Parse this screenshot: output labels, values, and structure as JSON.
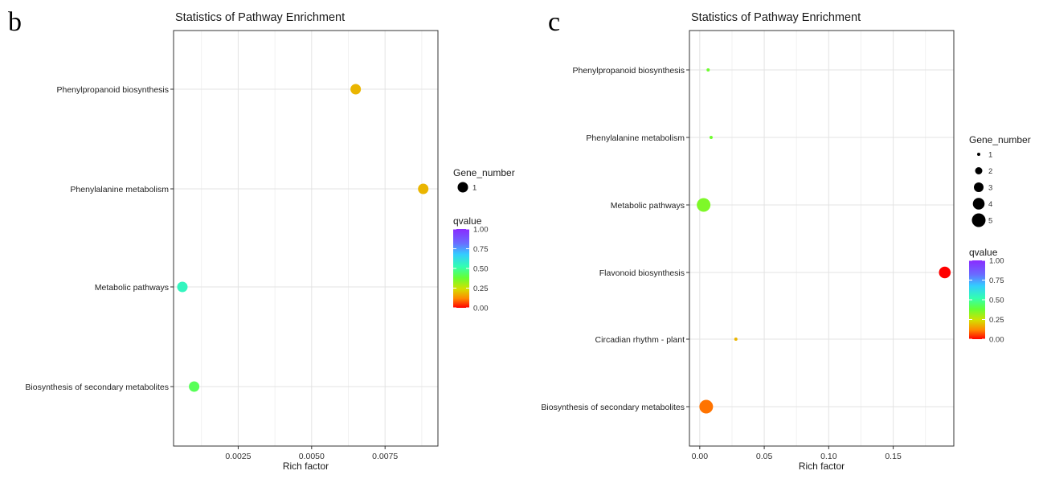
{
  "panels": [
    {
      "letter": "b",
      "chart_data": {
        "type": "scatter",
        "title": "Statistics of Pathway Enrichment",
        "xlabel": "Rich factor",
        "ylabel": "",
        "xlim": [
          0.0003,
          0.0093
        ],
        "x_ticks": [
          0.0025,
          0.005,
          0.0075
        ],
        "x_tick_labels": [
          "0.0025",
          "0.0050",
          "0.0075"
        ],
        "categories": [
          "Phenylpropanoid biosynthesis",
          "Phenylalanine metabolism",
          "Metabolic pathways",
          "Biosynthesis of secondary metabolites"
        ],
        "points": [
          {
            "category": "Phenylpropanoid biosynthesis",
            "rich_factor": 0.0065,
            "gene_number": 1,
            "qvalue": 0.18
          },
          {
            "category": "Phenylalanine metabolism",
            "rich_factor": 0.0088,
            "gene_number": 1,
            "qvalue": 0.18
          },
          {
            "category": "Metabolic pathways",
            "rich_factor": 0.0006,
            "gene_number": 1,
            "qvalue": 0.55
          },
          {
            "category": "Biosynthesis of secondary metabolites",
            "rich_factor": 0.001,
            "gene_number": 1,
            "qvalue": 0.42
          }
        ],
        "size_legend": {
          "title": "Gene_number",
          "values": [
            1
          ]
        },
        "color_legend": {
          "title": "qvalue",
          "ticks": [
            "1.00",
            "0.75",
            "0.50",
            "0.25",
            "0.00"
          ],
          "range": [
            0,
            1
          ]
        },
        "grid": true,
        "legend_position": "right"
      }
    },
    {
      "letter": "c",
      "chart_data": {
        "type": "scatter",
        "title": "Statistics of Pathway Enrichment",
        "xlabel": "Rich factor",
        "ylabel": "",
        "xlim": [
          -0.008,
          0.197
        ],
        "x_ticks": [
          0.0,
          0.05,
          0.1,
          0.15
        ],
        "x_tick_labels": [
          "0.00",
          "0.05",
          "0.10",
          "0.15"
        ],
        "categories": [
          "Phenylpropanoid biosynthesis",
          "Phenylalanine metabolism",
          "Metabolic pathways",
          "Flavonoid biosynthesis",
          "Circadian rhythm - plant",
          "Biosynthesis of secondary metabolites"
        ],
        "points": [
          {
            "category": "Phenylpropanoid biosynthesis",
            "rich_factor": 0.0065,
            "gene_number": 1,
            "qvalue": 0.37
          },
          {
            "category": "Phenylalanine metabolism",
            "rich_factor": 0.0088,
            "gene_number": 1,
            "qvalue": 0.37
          },
          {
            "category": "Metabolic pathways",
            "rich_factor": 0.003,
            "gene_number": 5,
            "qvalue": 0.35
          },
          {
            "category": "Flavonoid biosynthesis",
            "rich_factor": 0.19,
            "gene_number": 4,
            "qvalue": 0.0
          },
          {
            "category": "Circadian rhythm - plant",
            "rich_factor": 0.028,
            "gene_number": 1,
            "qvalue": 0.18
          },
          {
            "category": "Biosynthesis of secondary metabolites",
            "rich_factor": 0.005,
            "gene_number": 5,
            "qvalue": 0.1
          }
        ],
        "size_legend": {
          "title": "Gene_number",
          "values": [
            1,
            2,
            3,
            4,
            5
          ]
        },
        "color_legend": {
          "title": "qvalue",
          "ticks": [
            "1.00",
            "0.75",
            "0.50",
            "0.25",
            "0.00"
          ],
          "range": [
            0,
            1
          ]
        },
        "grid": true,
        "legend_position": "right"
      }
    }
  ]
}
